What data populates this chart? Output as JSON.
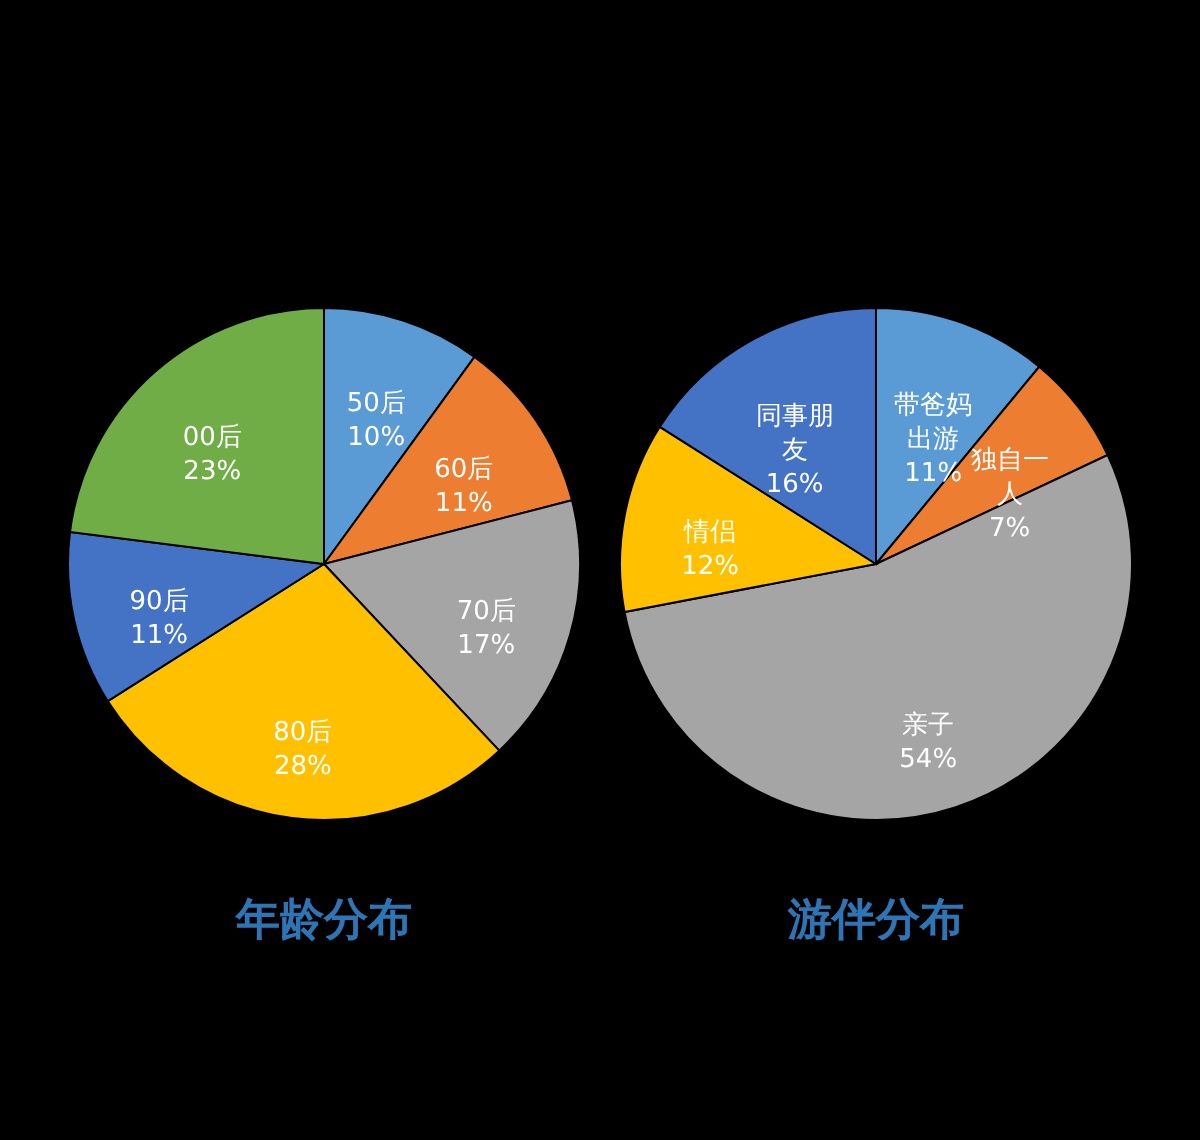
{
  "chart_data": [
    {
      "type": "pie",
      "title": "年龄分布",
      "categories": [
        "50后",
        "60后",
        "70后",
        "80后",
        "90后",
        "00后"
      ],
      "values": [
        10,
        11,
        17,
        28,
        11,
        23
      ],
      "value_labels": [
        "10%",
        "11%",
        "17%",
        "28%",
        "11%",
        "23%"
      ],
      "colors": [
        "#5b9bd5",
        "#ed7d31",
        "#a5a5a5",
        "#ffc000",
        "#4472c4",
        "#70ad47"
      ],
      "legend": false
    },
    {
      "type": "pie",
      "title": "游伴分布",
      "categories": [
        "带爸妈出游",
        "独自一人",
        "亲子",
        "情侣",
        "同事朋友"
      ],
      "values": [
        11,
        7,
        54,
        12,
        16
      ],
      "value_labels": [
        "11%",
        "7%",
        "54%",
        "12%",
        "16%"
      ],
      "colors": [
        "#5b9bd5",
        "#ed7d31",
        "#a5a5a5",
        "#ffc000",
        "#4472c4"
      ],
      "legend": false
    }
  ]
}
